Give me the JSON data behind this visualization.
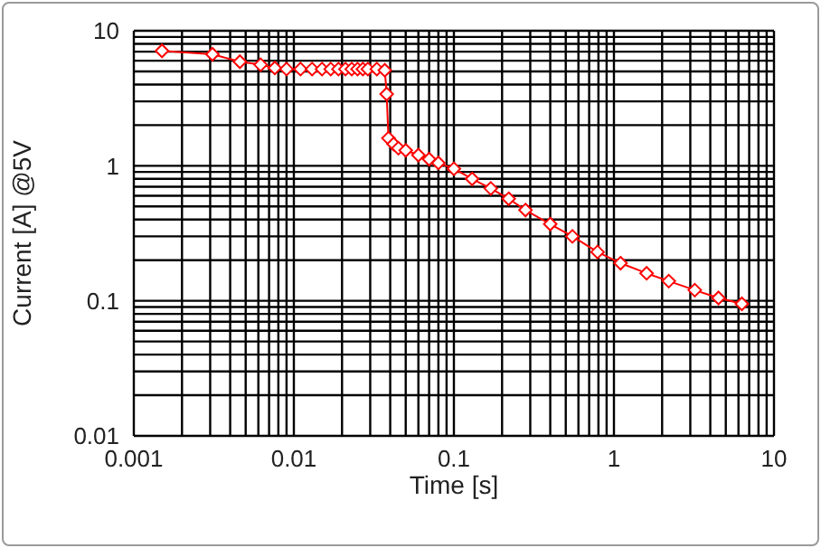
{
  "chart_data": {
    "type": "line",
    "xlabel": "Time [s]",
    "ylabel": "Current [A] @5V",
    "log": "xy",
    "grid": true,
    "marker": "diamond",
    "line_style": "solid",
    "xlim": [
      0.001,
      10
    ],
    "ylim": [
      0.01,
      10
    ],
    "xticks": [
      0.001,
      {
        "value": 0.002,
        "label": null
      },
      {
        "value": 0.003,
        "label": null
      },
      {
        "value": 0.004,
        "label": null
      },
      {
        "value": 0.005,
        "label": null
      },
      {
        "value": 0.006,
        "label": null
      },
      {
        "value": 0.007,
        "label": null
      },
      {
        "value": 0.008,
        "label": null
      },
      {
        "value": 0.009,
        "label": null
      },
      0.01,
      {
        "value": 0.02,
        "label": null
      },
      {
        "value": 0.03,
        "label": null
      },
      {
        "value": 0.04,
        "label": null
      },
      {
        "value": 0.05,
        "label": null
      },
      {
        "value": 0.06,
        "label": null
      },
      {
        "value": 0.07,
        "label": null
      },
      {
        "value": 0.08,
        "label": null
      },
      {
        "value": 0.09,
        "label": null
      },
      0.1,
      {
        "value": 0.2,
        "label": null
      },
      {
        "value": 0.3,
        "label": null
      },
      {
        "value": 0.4,
        "label": null
      },
      {
        "value": 0.5,
        "label": null
      },
      {
        "value": 0.6,
        "label": null
      },
      {
        "value": 0.7,
        "label": null
      },
      {
        "value": 0.8,
        "label": null
      },
      {
        "value": 0.9,
        "label": null
      },
      1,
      {
        "value": 2,
        "label": null
      },
      {
        "value": 3,
        "label": null
      },
      {
        "value": 4,
        "label": null
      },
      {
        "value": 5,
        "label": null
      },
      {
        "value": 6,
        "label": null
      },
      {
        "value": 7,
        "label": null
      },
      {
        "value": 8,
        "label": null
      },
      {
        "value": 9,
        "label": null
      },
      10
    ],
    "yticks": [
      0.01,
      {
        "value": 0.02,
        "label": null
      },
      {
        "value": 0.03,
        "label": null
      },
      {
        "value": 0.04,
        "label": null
      },
      {
        "value": 0.05,
        "label": null
      },
      {
        "value": 0.06,
        "label": null
      },
      {
        "value": 0.07,
        "label": null
      },
      {
        "value": 0.08,
        "label": null
      },
      {
        "value": 0.09,
        "label": null
      },
      0.1,
      {
        "value": 0.2,
        "label": null
      },
      {
        "value": 0.3,
        "label": null
      },
      {
        "value": 0.4,
        "label": null
      },
      {
        "value": 0.5,
        "label": null
      },
      {
        "value": 0.6,
        "label": null
      },
      {
        "value": 0.7,
        "label": null
      },
      {
        "value": 0.8,
        "label": null
      },
      {
        "value": 0.9,
        "label": null
      },
      1,
      {
        "value": 2,
        "label": null
      },
      {
        "value": 3,
        "label": null
      },
      {
        "value": 4,
        "label": null
      },
      {
        "value": 5,
        "label": null
      },
      {
        "value": 6,
        "label": null
      },
      {
        "value": 7,
        "label": null
      },
      {
        "value": 8,
        "label": null
      },
      {
        "value": 9,
        "label": null
      },
      10
    ],
    "series": [
      {
        "color": "#ff0000",
        "x": [
          0.0015,
          0.0031,
          0.0046,
          0.0062,
          0.0076,
          0.009,
          0.011,
          0.013,
          0.015,
          0.017,
          0.019,
          0.021,
          0.023,
          0.025,
          0.027,
          0.029,
          0.033,
          0.037,
          0.038,
          0.039,
          0.042,
          0.045,
          0.05,
          0.06,
          0.07,
          0.08,
          0.1,
          0.13,
          0.17,
          0.22,
          0.28,
          0.4,
          0.55,
          0.79,
          1.1,
          1.6,
          2.2,
          3.2,
          4.5,
          6.3
        ],
        "values": [
          7.1,
          6.7,
          5.9,
          5.6,
          5.3,
          5.2,
          5.2,
          5.2,
          5.2,
          5.2,
          5.2,
          5.2,
          5.2,
          5.2,
          5.2,
          5.2,
          5.2,
          5.1,
          3.4,
          1.6,
          1.45,
          1.35,
          1.3,
          1.2,
          1.12,
          1.05,
          0.95,
          0.8,
          0.68,
          0.57,
          0.47,
          0.37,
          0.3,
          0.23,
          0.19,
          0.16,
          0.14,
          0.12,
          0.105,
          0.095
        ]
      }
    ]
  }
}
